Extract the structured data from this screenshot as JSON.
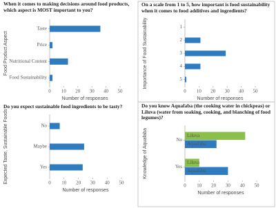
{
  "chart_data": [
    {
      "type": "bar",
      "orientation": "horizontal",
      "title": "When it comes to making decisions around food products, which aspect is MOST important to you?",
      "x_label": "Number of responses",
      "y_label": "Food Product Aspect",
      "categories": [
        "Taste",
        "Price",
        "Nutritional Content",
        "Food Sustainability"
      ],
      "values": [
        36,
        2,
        13,
        2
      ],
      "color": "#2e7bbf",
      "xlim": [
        0,
        50
      ],
      "xticks": [
        0,
        10,
        20,
        30,
        40,
        50
      ]
    },
    {
      "type": "bar",
      "orientation": "horizontal",
      "title": "On a scale from 1 to 5, how important is food sustainability when it comes to food additives and ingredients?",
      "x_label": "Number of responses",
      "y_label": "Importance of Food Sustainability",
      "categories": [
        "1",
        "2",
        "3",
        "4",
        "5"
      ],
      "values": [
        0,
        11,
        29,
        11,
        1
      ],
      "color": "#2e7bbf",
      "xlim": [
        0,
        50
      ],
      "xticks": [
        0,
        10,
        20,
        30,
        40,
        50
      ]
    },
    {
      "type": "bar",
      "orientation": "horizontal",
      "title": "Do you expect sustainable food ingredients to be tasty?",
      "x_label": "Number of responses",
      "y_label": "Expected Taste, Sustainable Foods",
      "categories": [
        "No",
        "Maybe",
        "Yes"
      ],
      "values": [
        7,
        24,
        23
      ],
      "color": "#2e7bbf",
      "xlim": [
        0,
        50
      ],
      "xticks": [
        0,
        10,
        20,
        30,
        40,
        50
      ]
    },
    {
      "type": "bar",
      "orientation": "horizontal",
      "title": "Do you know Aquafaba (the cooking water in chickpeas) or Liluva (water from soaking, cooking, and blanching of food legumes)?",
      "x_label": "Number of responses",
      "y_label": "Knowledge of Aquafaba",
      "categories": [
        "No",
        "Yes"
      ],
      "series": [
        {
          "name": "Liluva",
          "color": "#8cbf4a",
          "values": [
            42,
            10
          ]
        },
        {
          "name": "Aquafaba",
          "color": "#2e7bbf",
          "values": [
            22,
            30
          ]
        }
      ],
      "xlim": [
        0,
        50
      ],
      "xticks": [
        0,
        10,
        20,
        30,
        40,
        50
      ]
    }
  ]
}
